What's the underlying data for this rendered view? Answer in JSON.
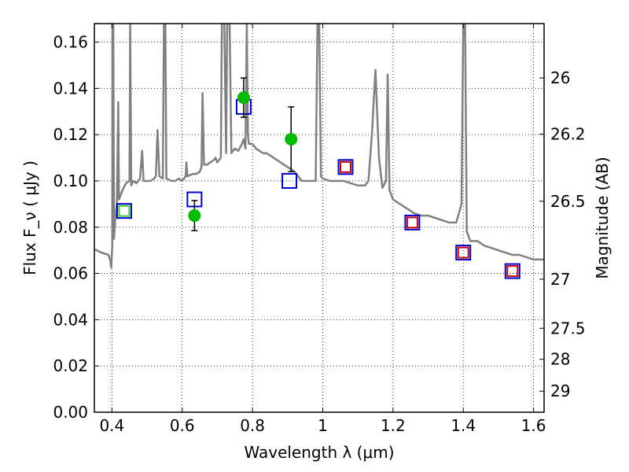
{
  "chart_data": {
    "type": "scatter",
    "xlabel": "Wavelength  λ (μm)",
    "ylabel_left": "Flux  F_ν ( μJy )",
    "ylabel_right": "Magnitude (AB)",
    "xlim": [
      0.35,
      1.63
    ],
    "ylim": [
      0.0,
      0.168
    ],
    "grid": "dotted",
    "x_ticks": [
      0.4,
      0.6,
      0.8,
      1.0,
      1.2,
      1.4,
      1.6
    ],
    "x_tick_labels": [
      "0.4",
      "0.6",
      "0.8",
      "1",
      "1.2",
      "1.4",
      "1.6"
    ],
    "y_ticks": [
      0.0,
      0.02,
      0.04,
      0.06,
      0.08,
      0.1,
      0.12,
      0.14,
      0.16
    ],
    "y_tick_labels": [
      "0.00",
      "0.02",
      "0.04",
      "0.06",
      "0.08",
      "0.10",
      "0.12",
      "0.14",
      "0.16"
    ],
    "right_ticks": [
      {
        "label": "26",
        "flux": 0.1445
      },
      {
        "label": "26.2",
        "flux": 0.1202
      },
      {
        "label": "26.5",
        "flux": 0.0912
      },
      {
        "label": "27",
        "flux": 0.0575
      },
      {
        "label": "27.5",
        "flux": 0.0363
      },
      {
        "label": "28",
        "flux": 0.0229
      },
      {
        "label": "29",
        "flux": 0.0091
      }
    ],
    "series": [
      {
        "kind": "line",
        "color": "#808080",
        "points": [
          [
            0.35,
            0.0705
          ],
          [
            0.37,
            0.069
          ],
          [
            0.39,
            0.068
          ],
          [
            0.395,
            0.066
          ],
          [
            0.398,
            0.0625
          ],
          [
            0.401,
            0.072
          ],
          [
            0.4015,
            0.168
          ],
          [
            0.404,
            0.168
          ],
          [
            0.406,
            0.075
          ],
          [
            0.41,
            0.085
          ],
          [
            0.414,
            0.09
          ],
          [
            0.418,
            0.134
          ],
          [
            0.42,
            0.092
          ],
          [
            0.43,
            0.096
          ],
          [
            0.44,
            0.099
          ],
          [
            0.45,
            0.1
          ],
          [
            0.452,
            0.168
          ],
          [
            0.455,
            0.098
          ],
          [
            0.46,
            0.1
          ],
          [
            0.47,
            0.099
          ],
          [
            0.48,
            0.101
          ],
          [
            0.486,
            0.113
          ],
          [
            0.49,
            0.1
          ],
          [
            0.5,
            0.1
          ],
          [
            0.51,
            0.1
          ],
          [
            0.52,
            0.101
          ],
          [
            0.525,
            0.102
          ],
          [
            0.53,
            0.122
          ],
          [
            0.535,
            0.102
          ],
          [
            0.545,
            0.101
          ],
          [
            0.548,
            0.168
          ],
          [
            0.552,
            0.168
          ],
          [
            0.555,
            0.101
          ],
          [
            0.57,
            0.1
          ],
          [
            0.58,
            0.1
          ],
          [
            0.59,
            0.101
          ],
          [
            0.6,
            0.1
          ],
          [
            0.61,
            0.102
          ],
          [
            0.612,
            0.108
          ],
          [
            0.615,
            0.102
          ],
          [
            0.63,
            0.103
          ],
          [
            0.64,
            0.103
          ],
          [
            0.65,
            0.104
          ],
          [
            0.655,
            0.106
          ],
          [
            0.658,
            0.138
          ],
          [
            0.662,
            0.107
          ],
          [
            0.67,
            0.107
          ],
          [
            0.68,
            0.108
          ],
          [
            0.69,
            0.109
          ],
          [
            0.695,
            0.11
          ],
          [
            0.7,
            0.108
          ],
          [
            0.71,
            0.11
          ],
          [
            0.713,
            0.168
          ],
          [
            0.72,
            0.168
          ],
          [
            0.725,
            0.112
          ],
          [
            0.728,
            0.168
          ],
          [
            0.735,
            0.168
          ],
          [
            0.74,
            0.112
          ],
          [
            0.745,
            0.113
          ],
          [
            0.75,
            0.114
          ],
          [
            0.76,
            0.113
          ],
          [
            0.77,
            0.116
          ],
          [
            0.775,
            0.118
          ],
          [
            0.78,
            0.114
          ],
          [
            0.784,
            0.168
          ],
          [
            0.787,
            0.12
          ],
          [
            0.79,
            0.116
          ],
          [
            0.8,
            0.116
          ],
          [
            0.81,
            0.114
          ],
          [
            0.82,
            0.113
          ],
          [
            0.83,
            0.112
          ],
          [
            0.84,
            0.112
          ],
          [
            0.86,
            0.11
          ],
          [
            0.88,
            0.108
          ],
          [
            0.9,
            0.106
          ],
          [
            0.92,
            0.104
          ],
          [
            0.94,
            0.1
          ],
          [
            0.96,
            0.1
          ],
          [
            0.98,
            0.1
          ],
          [
            0.985,
            0.168
          ],
          [
            0.99,
            0.168
          ],
          [
            0.995,
            0.102
          ],
          [
            1.0,
            0.101
          ],
          [
            1.02,
            0.1
          ],
          [
            1.04,
            0.1
          ],
          [
            1.06,
            0.1
          ],
          [
            1.08,
            0.099
          ],
          [
            1.1,
            0.098
          ],
          [
            1.12,
            0.098
          ],
          [
            1.13,
            0.1
          ],
          [
            1.14,
            0.12
          ],
          [
            1.15,
            0.148
          ],
          [
            1.16,
            0.11
          ],
          [
            1.17,
            0.097
          ],
          [
            1.18,
            0.1
          ],
          [
            1.185,
            0.146
          ],
          [
            1.19,
            0.096
          ],
          [
            1.2,
            0.092
          ],
          [
            1.22,
            0.09
          ],
          [
            1.24,
            0.088
          ],
          [
            1.26,
            0.086
          ],
          [
            1.28,
            0.085
          ],
          [
            1.3,
            0.085
          ],
          [
            1.32,
            0.084
          ],
          [
            1.34,
            0.083
          ],
          [
            1.36,
            0.082
          ],
          [
            1.38,
            0.082
          ],
          [
            1.395,
            0.09
          ],
          [
            1.4,
            0.168
          ],
          [
            1.405,
            0.168
          ],
          [
            1.41,
            0.078
          ],
          [
            1.42,
            0.074
          ],
          [
            1.44,
            0.074
          ],
          [
            1.46,
            0.072
          ],
          [
            1.48,
            0.071
          ],
          [
            1.5,
            0.07
          ],
          [
            1.52,
            0.069
          ],
          [
            1.54,
            0.068
          ],
          [
            1.56,
            0.068
          ],
          [
            1.58,
            0.067
          ],
          [
            1.6,
            0.066
          ],
          [
            1.63,
            0.066
          ]
        ]
      },
      {
        "kind": "open-square",
        "color": "#0000cc",
        "points": [
          [
            0.435,
            0.087
          ],
          [
            0.635,
            0.092
          ],
          [
            0.775,
            0.132
          ],
          [
            0.905,
            0.1
          ],
          [
            1.065,
            0.106
          ],
          [
            1.255,
            0.082
          ],
          [
            1.4,
            0.069
          ],
          [
            1.54,
            0.061
          ]
        ]
      },
      {
        "kind": "open-square",
        "color": "#cc0000",
        "points": [
          [
            1.065,
            0.106
          ],
          [
            1.255,
            0.082
          ],
          [
            1.4,
            0.069
          ],
          [
            1.54,
            0.061
          ]
        ]
      },
      {
        "kind": "open-square",
        "color": "#33cc33",
        "points": [
          [
            0.435,
            0.087
          ]
        ]
      },
      {
        "kind": "filled-circle-errorbar",
        "color": "#00bb00",
        "points": [
          {
            "x": 0.635,
            "y": 0.085,
            "lo": 0.0785,
            "hi": 0.0915
          },
          {
            "x": 0.775,
            "y": 0.136,
            "lo": 0.1275,
            "hi": 0.1445
          },
          {
            "x": 0.91,
            "y": 0.118,
            "lo": 0.104,
            "hi": 0.132
          }
        ]
      }
    ]
  }
}
